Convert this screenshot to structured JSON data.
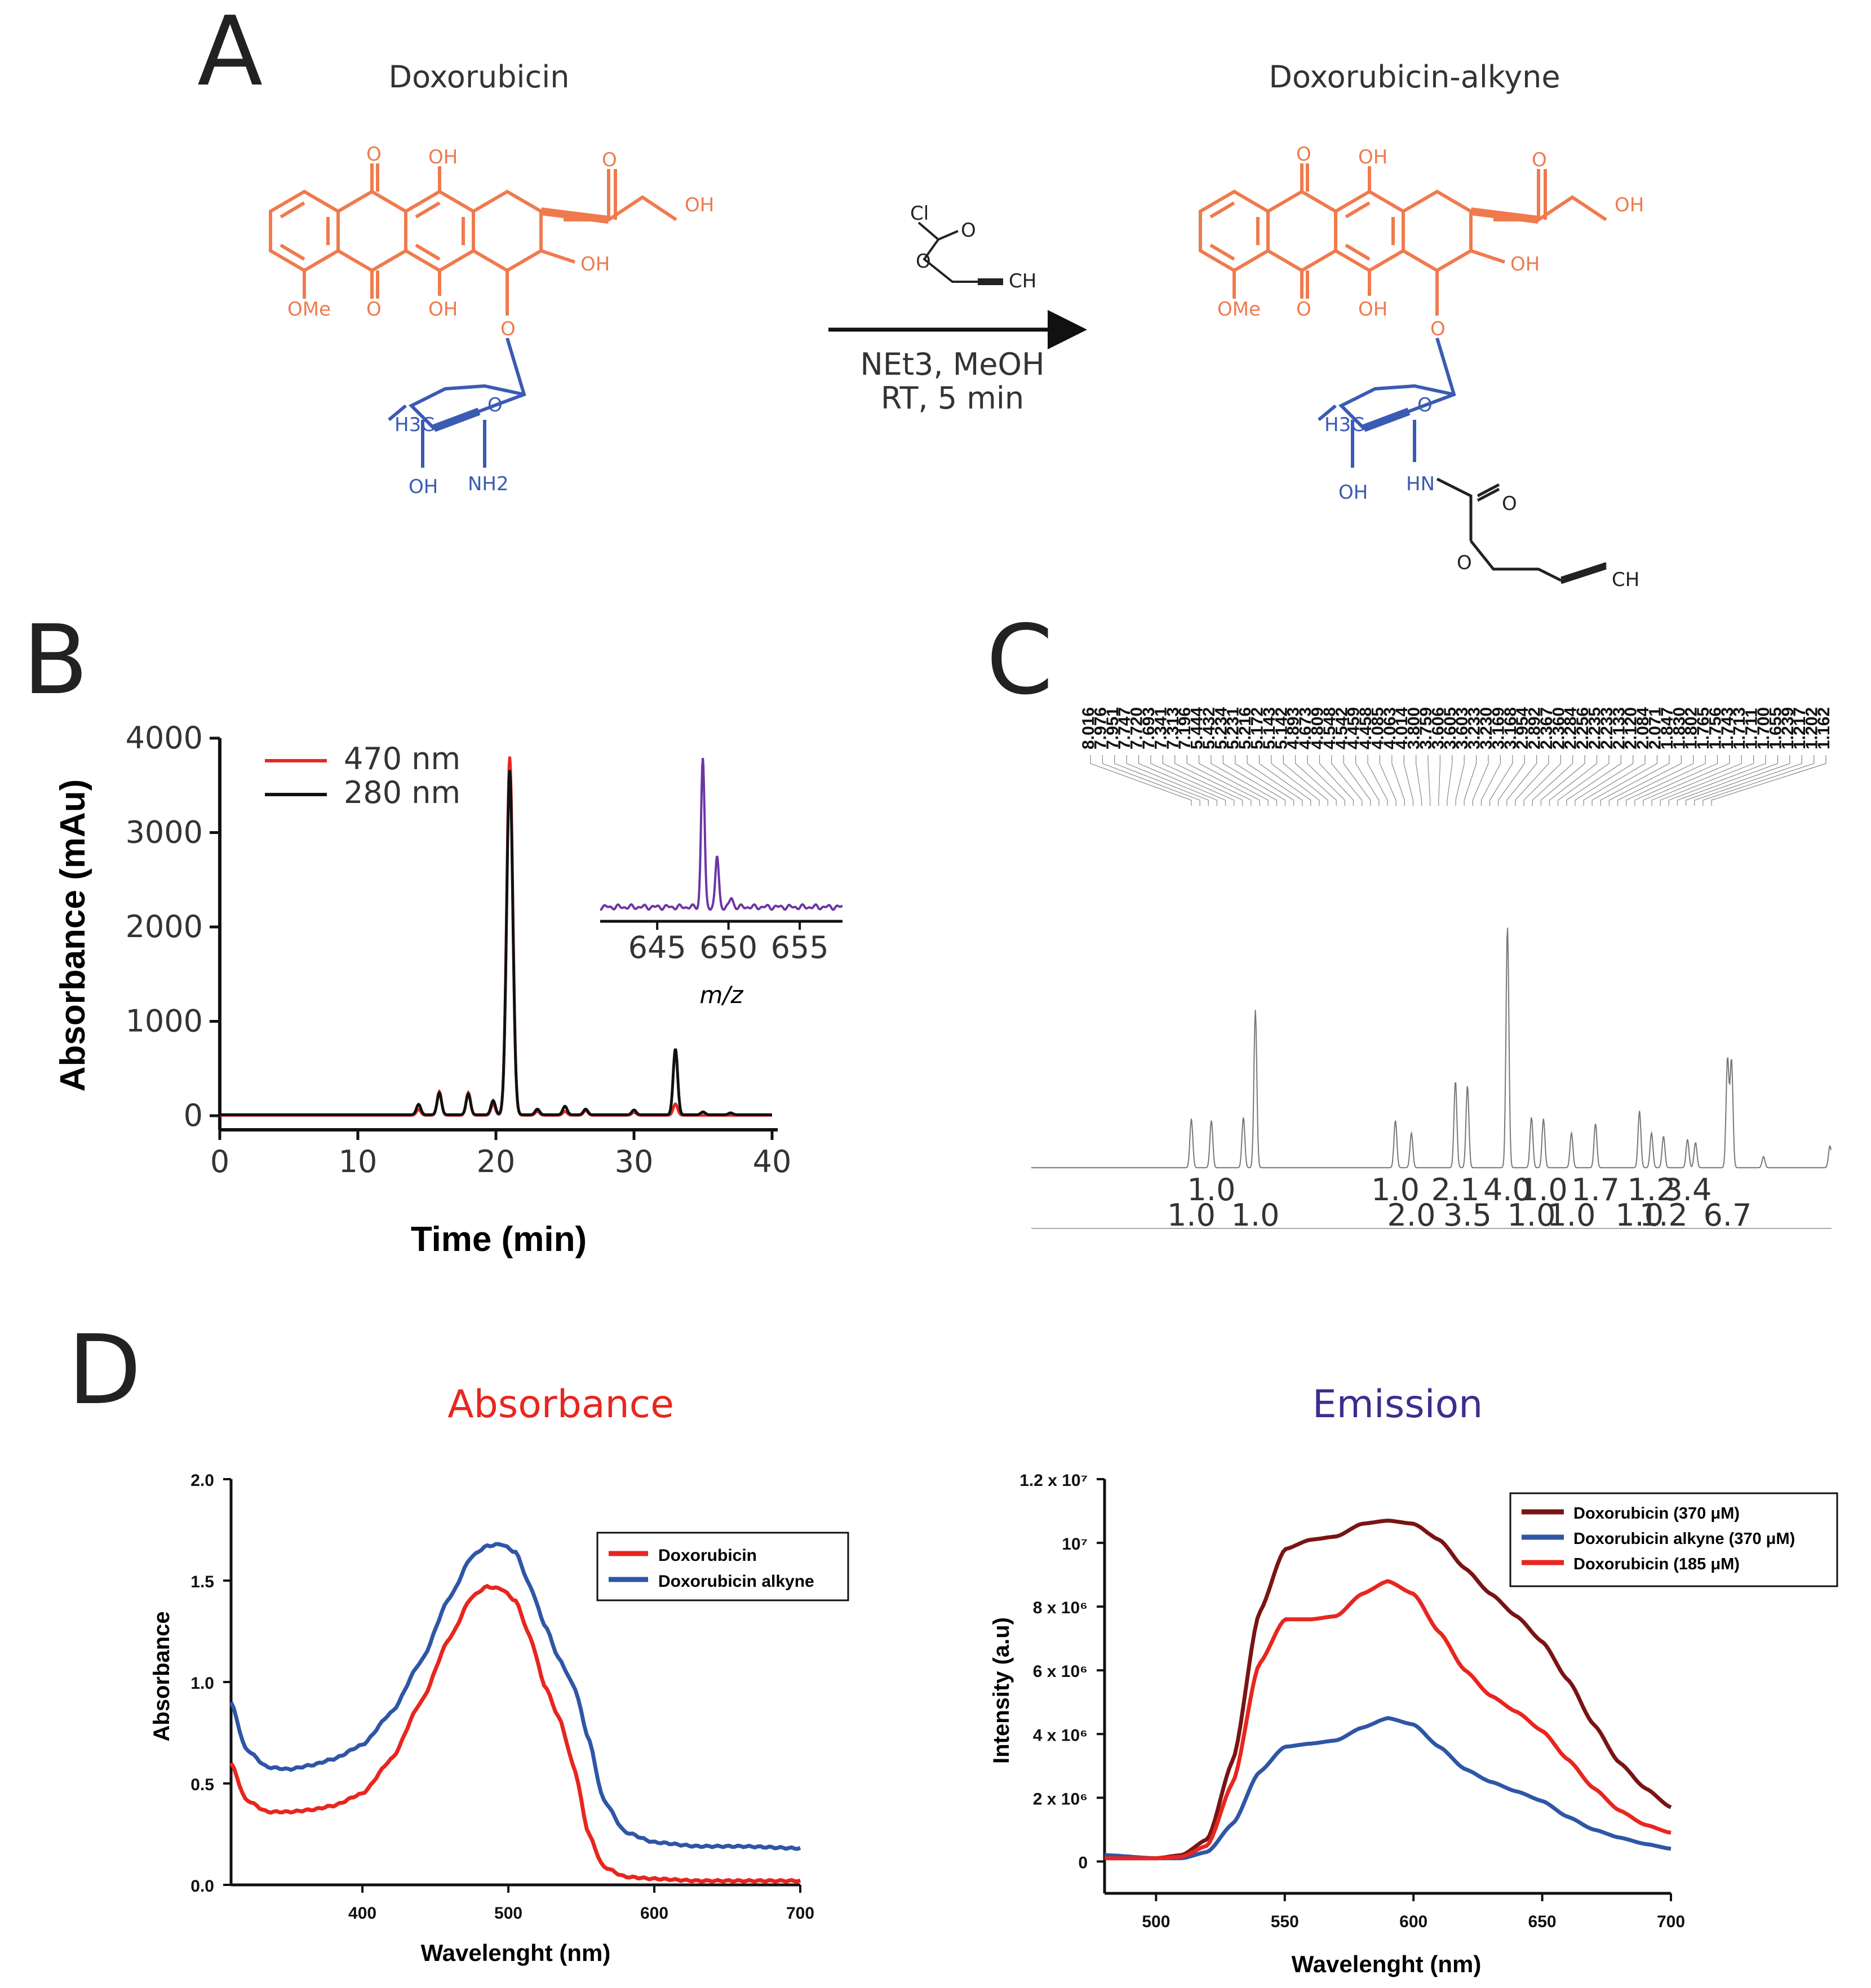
{
  "panels": {
    "a": "A",
    "b": "B",
    "c": "C",
    "d": "D"
  },
  "scheme": {
    "left_title": "Doxorubicin",
    "right_title": "Doxorubicin-alkyne",
    "reagent_line1": "NEt3, MeOH",
    "reagent_line2": "RT, 5 min",
    "labels": {
      "o": "O",
      "oh": "OH",
      "ome": "OMe",
      "h3c": "H3C",
      "nh2": "NH2",
      "hn": "HN",
      "cl": "Cl",
      "ch": "CH"
    }
  },
  "colors": {
    "doxorubicin_core": "#F07A4D",
    "sugar": "#3A5BB3",
    "reagent": "#222222",
    "red": "#E8261F",
    "blue": "#2F56A6",
    "darkred": "#7A1414",
    "purple": "#6B35A6"
  },
  "chart_data": [
    {
      "id": "hplc",
      "type": "line",
      "xlabel": "Time (min)",
      "ylabel": "Absorbance (mAu)",
      "xlim": [
        0,
        40
      ],
      "ylim": [
        0,
        4000
      ],
      "xticks": [
        0,
        10,
        20,
        30,
        40
      ],
      "yticks": [
        0,
        1000,
        2000,
        3000,
        4000
      ],
      "legend": [
        "470 nm",
        "280 nm"
      ],
      "series": [
        {
          "name": "470 nm",
          "peaks": [
            [
              14.4,
              60
            ],
            [
              15.9,
              250
            ],
            [
              18.0,
              240
            ],
            [
              19.8,
              120
            ],
            [
              21.0,
              3800
            ],
            [
              23.0,
              40
            ],
            [
              25.0,
              40
            ],
            [
              26.5,
              50
            ],
            [
              30.0,
              30
            ],
            [
              33.0,
              120
            ]
          ],
          "baseline": 5
        },
        {
          "name": "280 nm",
          "peaks": [
            [
              14.4,
              110
            ],
            [
              15.9,
              230
            ],
            [
              18.0,
              220
            ],
            [
              19.8,
              150
            ],
            [
              21.0,
              3650
            ],
            [
              23.0,
              60
            ],
            [
              25.0,
              90
            ],
            [
              26.5,
              60
            ],
            [
              30.0,
              50
            ],
            [
              33.0,
              700
            ],
            [
              35.0,
              30
            ],
            [
              37.0,
              20
            ]
          ],
          "baseline": 10
        }
      ],
      "inset": {
        "xlabel": "m/z",
        "xlim": [
          641,
          658
        ],
        "xticks": [
          645,
          650,
          655
        ],
        "peaks": [
          [
            648.2,
            1.0
          ],
          [
            649.2,
            0.34
          ],
          [
            650.2,
            0.06
          ]
        ]
      }
    },
    {
      "id": "nmr",
      "type": "line",
      "peak_list": [
        "8.016",
        "7.976",
        "7.951",
        "7.747",
        "7.720",
        "7.693",
        "7.341",
        "7.313",
        "7.196",
        "5.444",
        "5.432",
        "5.234",
        "5.231",
        "5.216",
        "5.172",
        "5.143",
        "5.142",
        "4.893",
        "4.673",
        "4.809",
        "4.548",
        "4.542",
        "4.459",
        "4.458",
        "4.085",
        "4.063",
        "4.014",
        "3.800",
        "3.759",
        "3.606",
        "3.605",
        "3.603",
        "3.233",
        "3.230",
        "3.169",
        "3.168",
        "2.954",
        "2.892",
        "2.367",
        "2.360",
        "2.284",
        "2.256",
        "2.235",
        "2.233",
        "2.133",
        "2.120",
        "2.084",
        "2.071",
        "1.847",
        "1.830",
        "1.802",
        "1.765",
        "1.756",
        "1.743",
        "1.713",
        "1.711",
        "1.700",
        "1.655",
        "1.239",
        "1.217",
        "1.202",
        "1.162"
      ],
      "integrals_top": [
        "1.0",
        "1.0",
        "2.1",
        "4.0",
        "1.0",
        "1.7",
        "1.2",
        "3.4"
      ],
      "integrals_bottom": [
        "1.0",
        "1.0",
        "2.0",
        "3.5",
        "1.0",
        "1.0",
        "1.0",
        "1.2",
        "6.7"
      ],
      "peaks": [
        [
          0.2,
          0.31
        ],
        [
          0.225,
          0.3
        ],
        [
          0.265,
          0.32
        ],
        [
          0.28,
          1.0
        ],
        [
          0.455,
          0.3
        ],
        [
          0.475,
          0.22
        ],
        [
          0.53,
          0.55
        ],
        [
          0.545,
          0.52
        ],
        [
          0.595,
          1.53
        ],
        [
          0.625,
          0.32
        ],
        [
          0.64,
          0.31
        ],
        [
          0.675,
          0.22
        ],
        [
          0.705,
          0.28
        ],
        [
          0.76,
          0.36
        ],
        [
          0.775,
          0.22
        ],
        [
          0.79,
          0.2
        ],
        [
          0.82,
          0.18
        ],
        [
          0.83,
          0.16
        ],
        [
          0.87,
          0.69
        ],
        [
          0.875,
          0.68
        ],
        [
          0.915,
          0.07
        ],
        [
          0.998,
          0.14
        ]
      ]
    },
    {
      "id": "absorbance",
      "type": "line",
      "title": "Absorbance",
      "xlabel": "Wavelenght (nm)",
      "ylabel": "Absorbance",
      "xlim": [
        310,
        700
      ],
      "ylim": [
        0,
        2.0
      ],
      "xticks": [
        400,
        500,
        600,
        700
      ],
      "yticks": [
        0.0,
        0.5,
        1.0,
        1.5,
        2.0
      ],
      "ytick_labels": [
        "0.0",
        "0.5",
        "1.0",
        "1.5",
        "2.0"
      ],
      "legend": [
        "Doxorubicin",
        "Doxorubicin alkyne"
      ],
      "series": [
        {
          "name": "Doxorubicin",
          "x": [
            310,
            320,
            335,
            350,
            365,
            380,
            400,
            420,
            440,
            460,
            475,
            485,
            495,
            505,
            515,
            525,
            535,
            545,
            555,
            565,
            580,
            600,
            630,
            660,
            700
          ],
          "y": [
            0.6,
            0.42,
            0.36,
            0.36,
            0.37,
            0.39,
            0.45,
            0.62,
            0.9,
            1.22,
            1.42,
            1.47,
            1.46,
            1.4,
            1.22,
            0.98,
            0.82,
            0.58,
            0.25,
            0.09,
            0.04,
            0.03,
            0.02,
            0.02,
            0.02
          ]
        },
        {
          "name": "Doxorubicin alkyne",
          "x": [
            310,
            320,
            335,
            350,
            365,
            380,
            400,
            420,
            440,
            460,
            475,
            485,
            495,
            505,
            515,
            525,
            535,
            545,
            555,
            565,
            580,
            600,
            630,
            660,
            700
          ],
          "y": [
            0.9,
            0.67,
            0.58,
            0.57,
            0.59,
            0.62,
            0.69,
            0.85,
            1.1,
            1.42,
            1.62,
            1.67,
            1.68,
            1.64,
            1.47,
            1.28,
            1.11,
            0.98,
            0.72,
            0.42,
            0.26,
            0.21,
            0.19,
            0.19,
            0.18
          ]
        }
      ]
    },
    {
      "id": "emission",
      "type": "line",
      "title": "Emission",
      "xlabel": "Wavelenght (nm)",
      "ylabel": "Intensity (a.u)",
      "xlim": [
        480,
        700
      ],
      "ylim": [
        -1000000,
        12000000
      ],
      "xticks": [
        500,
        550,
        600,
        650,
        700
      ],
      "yticks": [
        0,
        2000000,
        4000000,
        6000000,
        8000000,
        10000000,
        12000000
      ],
      "ytick_labels": [
        "0",
        "2 x 10⁶",
        "4 x 10⁶",
        "6 x 10⁶",
        "8 x 10⁶",
        "10⁷",
        "1.2 x 10⁷"
      ],
      "legend": [
        "Doxorubicin (370 μM)",
        "Doxorubicin alkyne (370 μM)",
        "Doxorubicin (185 μM)"
      ],
      "series": [
        {
          "name": "Doxorubicin (370 μM)",
          "x": [
            480,
            500,
            510,
            520,
            530,
            540,
            550,
            560,
            570,
            580,
            590,
            600,
            610,
            620,
            630,
            640,
            650,
            660,
            670,
            680,
            690,
            700
          ],
          "y": [
            0.1,
            0.1,
            0.2,
            0.7,
            3.2,
            7.8,
            9.8,
            10.1,
            10.2,
            10.6,
            10.7,
            10.6,
            10.1,
            9.2,
            8.4,
            7.7,
            6.9,
            5.7,
            4.3,
            3.1,
            2.3,
            1.7
          ]
        },
        {
          "name": "Doxorubicin alkyne (370 μM)",
          "x": [
            480,
            500,
            510,
            520,
            530,
            540,
            550,
            560,
            570,
            580,
            590,
            600,
            610,
            620,
            630,
            640,
            650,
            660,
            670,
            680,
            690,
            700
          ],
          "y": [
            0.2,
            0.1,
            0.1,
            0.3,
            1.2,
            2.8,
            3.6,
            3.7,
            3.8,
            4.2,
            4.5,
            4.3,
            3.6,
            2.9,
            2.5,
            2.2,
            1.9,
            1.4,
            1.0,
            0.75,
            0.55,
            0.4
          ]
        },
        {
          "name": "Doxorubicin (185 μM)",
          "x": [
            480,
            500,
            510,
            520,
            530,
            540,
            550,
            560,
            570,
            580,
            590,
            600,
            610,
            620,
            630,
            640,
            650,
            660,
            670,
            680,
            690,
            700
          ],
          "y": [
            0.1,
            0.1,
            0.15,
            0.5,
            2.5,
            6.2,
            7.6,
            7.6,
            7.7,
            8.4,
            8.8,
            8.4,
            7.2,
            6.0,
            5.2,
            4.7,
            4.1,
            3.2,
            2.3,
            1.6,
            1.15,
            0.9
          ]
        }
      ]
    }
  ]
}
